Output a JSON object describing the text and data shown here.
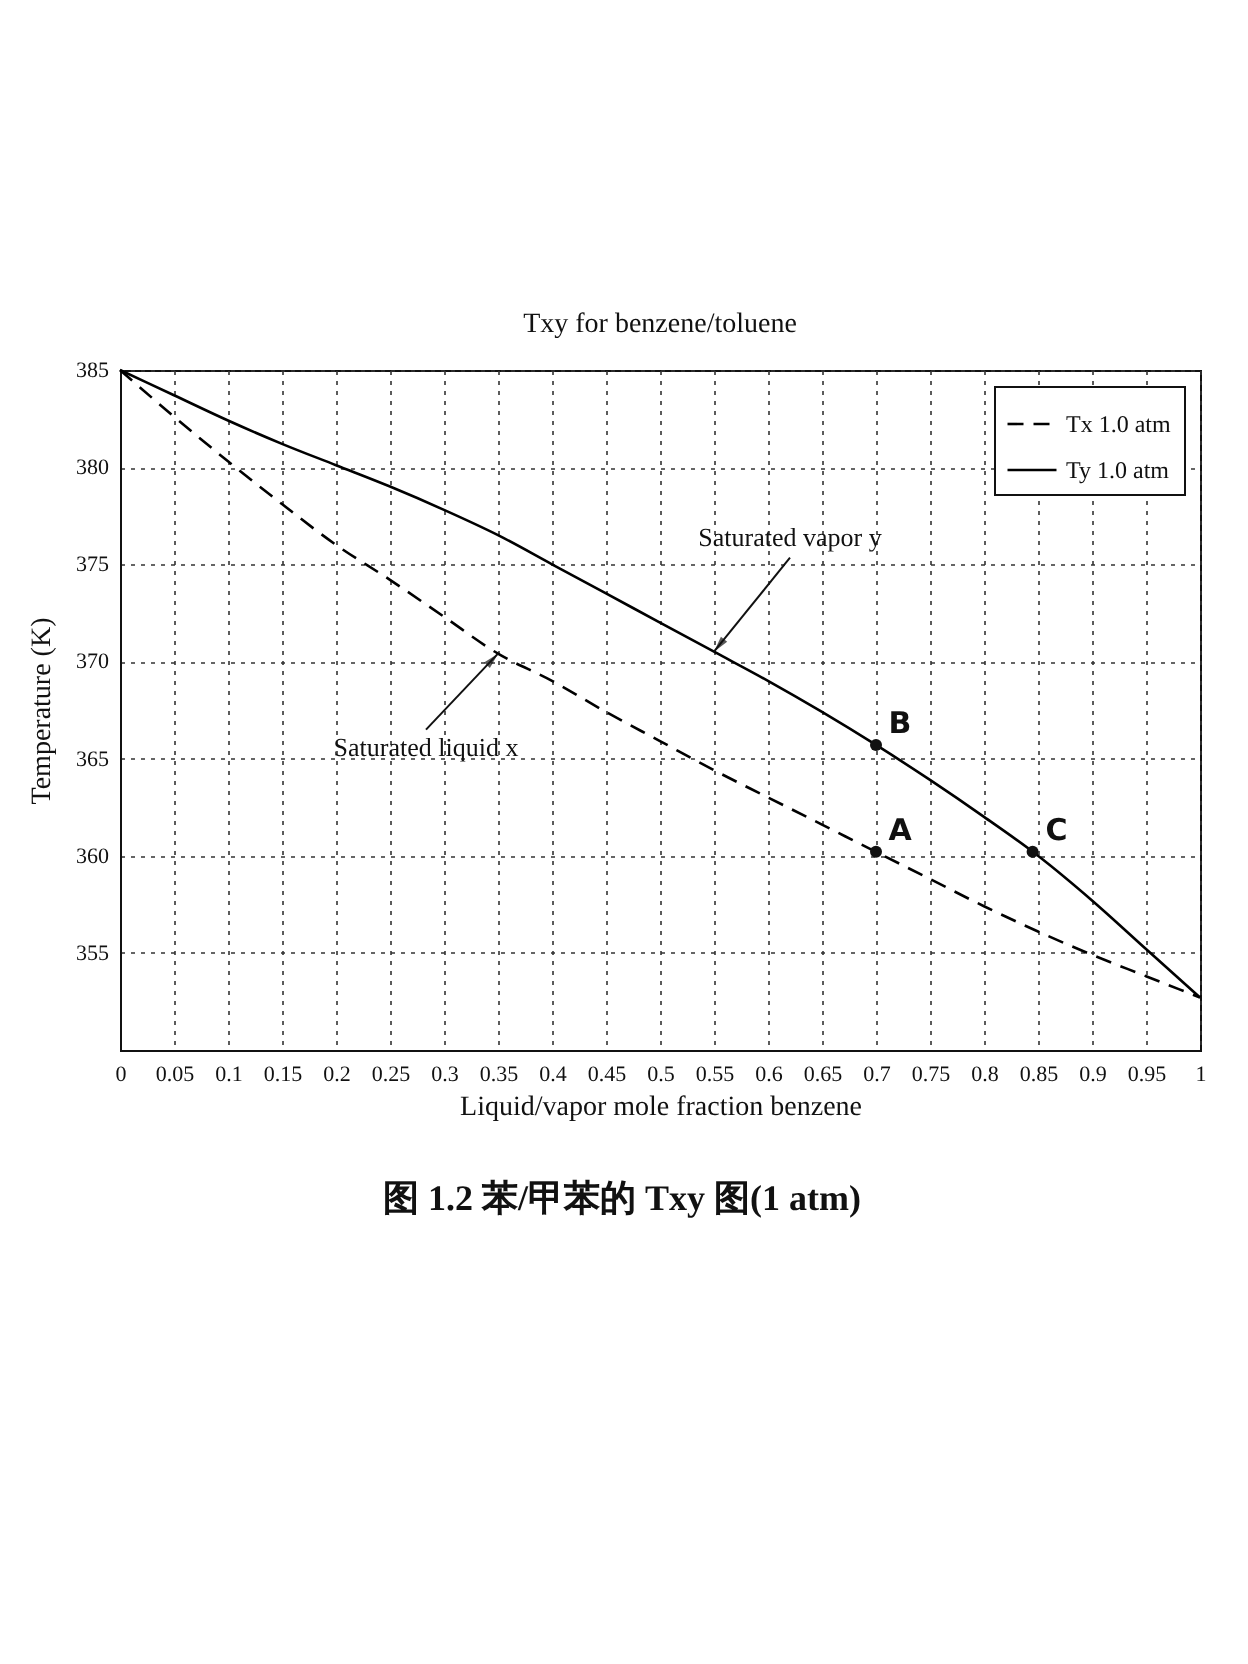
{
  "chart_data": {
    "type": "line",
    "title": "Txy for benzene/toluene",
    "xlabel": "Liquid/vapor mole fraction benzene",
    "ylabel": "Temperature (K)",
    "x": [
      0,
      0.05,
      0.1,
      0.15,
      0.2,
      0.25,
      0.3,
      0.35,
      0.4,
      0.45,
      0.5,
      0.55,
      0.6,
      0.65,
      0.7,
      0.75,
      0.8,
      0.85,
      0.9,
      0.95,
      1
    ],
    "series": [
      {
        "name": "Tx 1.0 atm",
        "color": "#000000",
        "line_style": "dashed",
        "values": [
          385,
          382.6,
          380.3,
          378.1,
          376.0,
          374.2,
          372.3,
          370.4,
          369.0,
          367.4,
          365.9,
          364.4,
          363.0,
          361.6,
          360.2,
          358.8,
          357.4,
          356.1,
          354.9,
          353.8,
          352.7
        ]
      },
      {
        "name": "Ty 1.0 atm",
        "color": "#000000",
        "line_style": "solid",
        "values": [
          385,
          383.7,
          382.4,
          381.2,
          380.1,
          379.0,
          377.8,
          376.5,
          375.0,
          373.5,
          372.0,
          370.5,
          369.0,
          367.4,
          365.7,
          363.9,
          362.0,
          360.0,
          357.7,
          355.2,
          352.7
        ]
      }
    ],
    "xlim": [
      0,
      1
    ],
    "ylim": [
      350,
      385
    ],
    "xticks": [
      0,
      0.05,
      0.1,
      0.15,
      0.2,
      0.25,
      0.3,
      0.35,
      0.4,
      0.45,
      0.5,
      0.55,
      0.6,
      0.65,
      0.7,
      0.75,
      0.8,
      0.85,
      0.9,
      0.95,
      1
    ],
    "yticks": [
      355,
      360,
      365,
      370,
      375,
      380,
      385
    ],
    "grid": true,
    "legend": "top right",
    "annotations": [
      {
        "text": "Saturated liquid x",
        "x": 0.35,
        "y": 370.4
      },
      {
        "text": "Saturated vapor y",
        "x": 0.55,
        "y": 370.5
      },
      {
        "text": "A",
        "x": 0.7,
        "y": 360.2
      },
      {
        "text": "B",
        "x": 0.7,
        "y": 365.7
      },
      {
        "text": "C",
        "x": 0.845,
        "y": 360.2
      },
      "图 1.2 苯/甲苯的 Txy 图(1 atm)"
    ]
  }
}
